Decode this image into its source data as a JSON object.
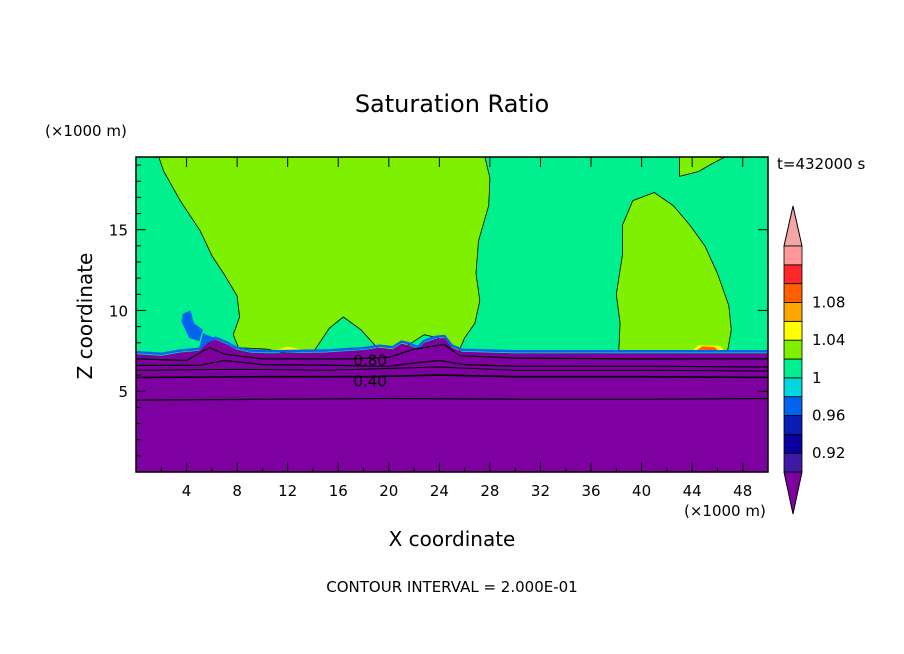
{
  "chart_data": {
    "type": "heatmap",
    "title": "Saturation Ratio",
    "xlabel": "X coordinate",
    "ylabel": "Z coordinate",
    "x_unit": "(×1000 m)",
    "y_unit": "(×1000 m)",
    "time_label": "t=432000 s",
    "footer": "CONTOUR INTERVAL = 2.000E-01",
    "xlim": [
      0,
      50
    ],
    "ylim": [
      0,
      19.5
    ],
    "x_ticks": [
      4,
      8,
      12,
      16,
      20,
      24,
      28,
      32,
      36,
      40,
      44,
      48
    ],
    "y_ticks": [
      5,
      10,
      15
    ],
    "contour_labels": [
      {
        "text": "0.80",
        "x": 17.2,
        "y": 6.9
      },
      {
        "text": "0.40",
        "x": 17.2,
        "y": 5.6
      }
    ],
    "colorbar": {
      "levels": [
        0.92,
        0.96,
        1,
        1.04,
        1.08
      ],
      "label_texts": [
        "0.92",
        "0.96",
        "1",
        "1.04",
        "1.08"
      ],
      "colors": [
        "#3c1aa3",
        "#0a00a0",
        "#0a1cb4",
        "#0064f0",
        "#00d8e0",
        "#00f090",
        "#7ff000",
        "#ffff00",
        "#ffa500",
        "#ff6000",
        "#ff2828",
        "#ff9999"
      ],
      "under_color": "#7f00a0",
      "over_color": "#f4a6a6"
    },
    "regions": {
      "low_layer_color": "#7f00a0",
      "background_color": "#00f090",
      "supersaturated_color": "#7ff000",
      "edge_color": "#0064f0",
      "warm_color": "#ffff00",
      "hot_color": "#ff6000"
    }
  }
}
